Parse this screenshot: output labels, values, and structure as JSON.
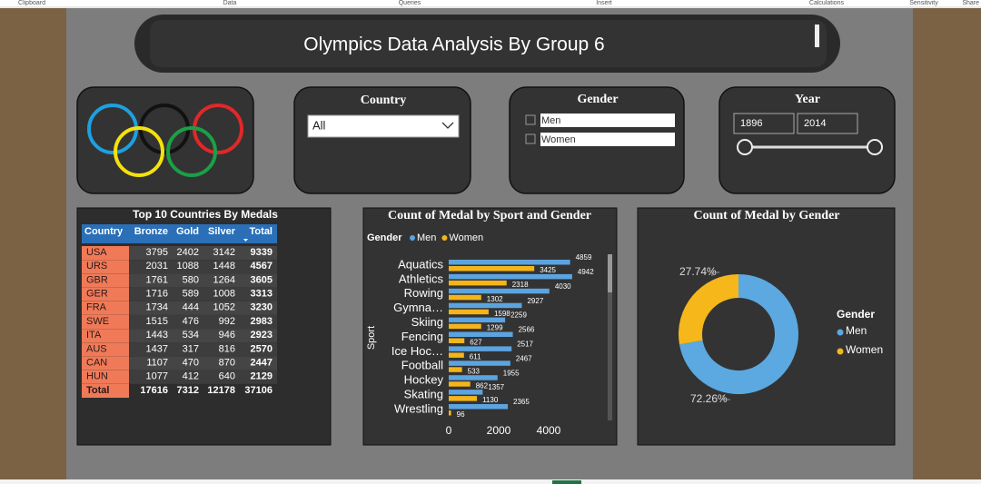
{
  "ribbon": [
    "Clipboard",
    "Data",
    "Queries",
    "Insert",
    "Calculations",
    "Sensitivity",
    "Share"
  ],
  "header": {
    "title": "Olympics Data Analysis By Group 6"
  },
  "filters": {
    "country": {
      "label": "Country",
      "value": "All"
    },
    "gender": {
      "label": "Gender",
      "options": [
        "Men",
        "Women"
      ]
    },
    "year": {
      "label": "Year",
      "start": 1896,
      "end": 2014
    }
  },
  "table": {
    "title": "Top 10 Countries By Medals",
    "columns": [
      "Country",
      "Bronze",
      "Gold",
      "Silver",
      "Total"
    ],
    "rows": [
      [
        "USA",
        3795,
        2402,
        3142,
        9339
      ],
      [
        "URS",
        2031,
        1088,
        1448,
        4567
      ],
      [
        "GBR",
        1761,
        580,
        1264,
        3605
      ],
      [
        "GER",
        1716,
        589,
        1008,
        3313
      ],
      [
        "FRA",
        1734,
        444,
        1052,
        3230
      ],
      [
        "SWE",
        1515,
        476,
        992,
        2983
      ],
      [
        "ITA",
        1443,
        534,
        946,
        2923
      ],
      [
        "AUS",
        1437,
        317,
        816,
        2570
      ],
      [
        "CAN",
        1107,
        470,
        870,
        2447
      ],
      [
        "HUN",
        1077,
        412,
        640,
        2129
      ]
    ],
    "total": [
      "Total",
      17616,
      7312,
      12178,
      37106
    ]
  },
  "chart_data": [
    {
      "type": "bar",
      "orientation": "horizontal",
      "title": "Count of Medal by Sport and Gender",
      "legend_title": "Gender",
      "y_label": "Sport",
      "categories": [
        "Aquatics",
        "Athletics",
        "Rowing",
        "Gymna…",
        "Skiing",
        "Fencing",
        "Ice Hoc…",
        "Football",
        "Hockey",
        "Skating",
        "Wrestling"
      ],
      "series": [
        {
          "name": "Men",
          "color": "#5ba4e0",
          "values": [
            4859,
            4942,
            4030,
            2927,
            2259,
            2566,
            2517,
            2467,
            1955,
            1357,
            2365
          ]
        },
        {
          "name": "Women",
          "color": "#f5b51a",
          "values": [
            3425,
            2318,
            1302,
            1598,
            1299,
            627,
            611,
            533,
            862,
            1130,
            96
          ]
        }
      ],
      "xlim": [
        0,
        5000
      ],
      "xticks": [
        0,
        2000,
        4000
      ]
    },
    {
      "type": "donut",
      "title": "Count of Medal by Gender",
      "legend_title": "Gender",
      "categories": [
        "Men",
        "Women"
      ],
      "values": [
        72.26,
        27.74
      ],
      "value_labels": [
        "72.26%",
        "27.74%"
      ],
      "colors": [
        "#5ba9e0",
        "#f5b71a"
      ]
    }
  ]
}
